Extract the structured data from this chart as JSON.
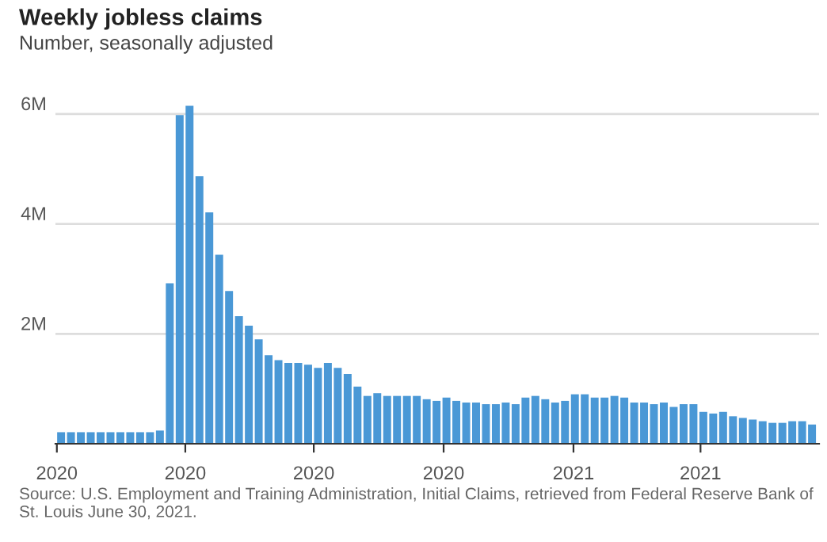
{
  "chart_data": {
    "type": "bar",
    "title": "Weekly jobless claims",
    "subtitle": "Number, seasonally adjusted",
    "x": [
      "2020-01-04",
      "2020-01-11",
      "2020-01-18",
      "2020-01-25",
      "2020-02-01",
      "2020-02-08",
      "2020-02-15",
      "2020-02-22",
      "2020-02-29",
      "2020-03-07",
      "2020-03-14",
      "2020-03-21",
      "2020-03-28",
      "2020-04-04",
      "2020-04-11",
      "2020-04-18",
      "2020-04-25",
      "2020-05-02",
      "2020-05-09",
      "2020-05-16",
      "2020-05-23",
      "2020-05-30",
      "2020-06-06",
      "2020-06-13",
      "2020-06-20",
      "2020-06-27",
      "2020-07-04",
      "2020-07-11",
      "2020-07-18",
      "2020-07-25",
      "2020-08-01",
      "2020-08-08",
      "2020-08-15",
      "2020-08-22",
      "2020-08-29",
      "2020-09-05",
      "2020-09-12",
      "2020-09-19",
      "2020-09-26",
      "2020-10-03",
      "2020-10-10",
      "2020-10-17",
      "2020-10-24",
      "2020-10-31",
      "2020-11-07",
      "2020-11-14",
      "2020-11-21",
      "2020-11-28",
      "2020-12-05",
      "2020-12-12",
      "2020-12-19",
      "2020-12-26",
      "2021-01-02",
      "2021-01-09",
      "2021-01-16",
      "2021-01-23",
      "2021-01-30",
      "2021-02-06",
      "2021-02-13",
      "2021-02-20",
      "2021-02-27",
      "2021-03-06",
      "2021-03-13",
      "2021-03-20",
      "2021-03-27",
      "2021-04-03",
      "2021-04-10",
      "2021-04-17",
      "2021-04-24",
      "2021-05-01",
      "2021-05-08",
      "2021-05-15",
      "2021-05-22",
      "2021-05-29",
      "2021-06-05",
      "2021-06-12",
      "2021-06-19"
    ],
    "values": [
      210000,
      210000,
      210000,
      210000,
      210000,
      210000,
      210000,
      210000,
      210000,
      210000,
      240000,
      2920000,
      5980000,
      6150000,
      4870000,
      4210000,
      3440000,
      2780000,
      2320000,
      2150000,
      1900000,
      1610000,
      1520000,
      1470000,
      1470000,
      1440000,
      1380000,
      1470000,
      1380000,
      1270000,
      1040000,
      870000,
      920000,
      870000,
      870000,
      870000,
      870000,
      810000,
      780000,
      840000,
      780000,
      750000,
      750000,
      720000,
      720000,
      750000,
      720000,
      840000,
      870000,
      810000,
      750000,
      780000,
      900000,
      900000,
      840000,
      840000,
      870000,
      840000,
      750000,
      750000,
      720000,
      750000,
      670000,
      720000,
      720000,
      580000,
      550000,
      580000,
      500000,
      470000,
      440000,
      410000,
      380000,
      380000,
      410000,
      410000,
      350000
    ],
    "color": "#4a98d6",
    "xlim": [
      "2019-12-31",
      "2021-06-24"
    ],
    "xticks": [
      {
        "value": "2020-01-01",
        "label": "2020"
      },
      {
        "value": "2020-04-01",
        "label": "2020"
      },
      {
        "value": "2020-07-01",
        "label": "2020"
      },
      {
        "value": "2020-10-01",
        "label": "2020"
      },
      {
        "value": "2021-01-01",
        "label": "2021"
      },
      {
        "value": "2021-04-01",
        "label": "2021"
      }
    ],
    "ylim": [
      0,
      6200000
    ],
    "yticks": [
      {
        "value": 2000000,
        "label": "2M"
      },
      {
        "value": 4000000,
        "label": "4M"
      },
      {
        "value": 6000000,
        "label": "6M"
      }
    ],
    "grid": "y",
    "annotations": [
      "Source: U.S. Employment and Training Administration, Initial Claims, retrieved from Federal Reserve Bank of St. Louis June 30, 2021."
    ]
  }
}
